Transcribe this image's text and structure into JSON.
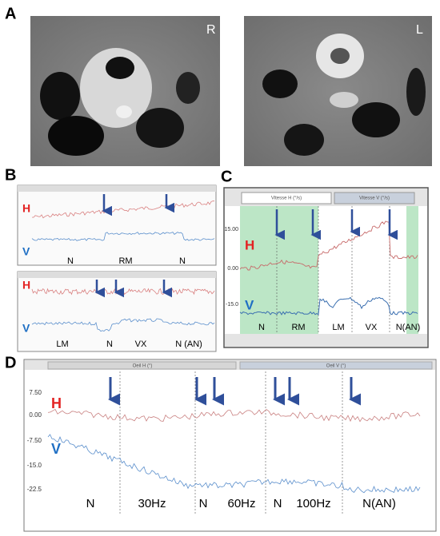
{
  "panels": {
    "a": {
      "label": "A",
      "images": [
        {
          "side": "R"
        },
        {
          "side": "L"
        }
      ]
    },
    "b": {
      "label": "B",
      "top": {
        "h": "H",
        "v": "V",
        "segments": [
          "N",
          "RM",
          "N"
        ]
      },
      "bottom": {
        "h": "H",
        "v": "V",
        "segments": [
          "LM",
          "N",
          "VX",
          "N (AN)"
        ]
      }
    },
    "c": {
      "label": "C",
      "headers": [
        "Vitesse H (°/s)",
        "Vitesse V (°/s)"
      ],
      "yticks": [
        "15.00",
        "0.00",
        "-15.0"
      ],
      "h": "H",
      "v": "V",
      "segments": [
        "N",
        "RM",
        "LM",
        "VX",
        "N(AN)"
      ]
    },
    "d": {
      "label": "D",
      "headers": [
        "Oeil H (°)",
        "Oeil V (°)"
      ],
      "yticks": [
        "7.50",
        "0.00",
        "-7.50",
        "-15.0",
        "-22.5"
      ],
      "h": "H",
      "v": "V",
      "segments": [
        "N",
        "30Hz",
        "N",
        "60Hz",
        "N",
        "100Hz",
        "N(AN)"
      ]
    }
  }
}
